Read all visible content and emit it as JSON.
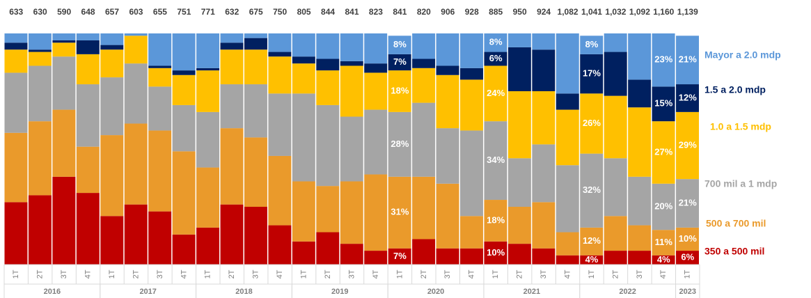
{
  "chart_data": {
    "type": "stacked_bar_100",
    "categories": [
      "1T",
      "2T",
      "3T",
      "4T",
      "1T",
      "2T",
      "3T",
      "4T",
      "1T",
      "2T",
      "3T",
      "4T",
      "1T",
      "2T",
      "3T",
      "4T",
      "1T",
      "2T",
      "3T",
      "4T",
      "1T",
      "2T",
      "3T",
      "4T",
      "1T",
      "2T",
      "3T",
      "4T",
      "1T"
    ],
    "groups": [
      {
        "label": "2016",
        "span": 4
      },
      {
        "label": "2017",
        "span": 4
      },
      {
        "label": "2018",
        "span": 4
      },
      {
        "label": "2019",
        "span": 4
      },
      {
        "label": "2020",
        "span": 4
      },
      {
        "label": "2021",
        "span": 4
      },
      {
        "label": "2022",
        "span": 4
      },
      {
        "label": "2023",
        "span": 1
      }
    ],
    "ylim": [
      0,
      100
    ],
    "totals": {
      "values": [
        633,
        630,
        590,
        648,
        657,
        603,
        655,
        751,
        771,
        632,
        675,
        750,
        805,
        844,
        841,
        823,
        841,
        820,
        906,
        928,
        885,
        950,
        924,
        1082,
        1041,
        1032,
        1092,
        1160,
        1139
      ],
      "value_labels": [
        "633",
        "630",
        "590",
        "648",
        "657",
        "603",
        "655",
        "751",
        "771",
        "632",
        "675",
        "750",
        "805",
        "844",
        "841",
        "823",
        "841",
        "820",
        "906",
        "928",
        "885",
        "950",
        "924",
        "1,082",
        "1,041",
        "1,032",
        "1,092",
        "1,160",
        "1,139"
      ]
    },
    "series": [
      {
        "name": "350 a 500 mil",
        "color": "#c00000",
        "values": [
          27,
          30,
          38,
          31,
          21,
          26,
          23,
          13,
          16,
          26,
          25,
          17,
          10,
          14,
          9,
          6,
          7,
          11,
          7,
          7,
          10,
          9,
          7,
          4,
          4,
          6,
          6,
          4,
          6
        ],
        "value_labels": [
          null,
          null,
          null,
          null,
          null,
          null,
          null,
          null,
          null,
          null,
          null,
          null,
          null,
          null,
          null,
          null,
          "7%",
          null,
          null,
          null,
          "10%",
          null,
          null,
          null,
          "4%",
          null,
          null,
          "4%",
          "6%"
        ]
      },
      {
        "name": "500 a 700 mil",
        "color": "#ea9a2b",
        "values": [
          30,
          32,
          29,
          20,
          35,
          35,
          35,
          36,
          26,
          33,
          30,
          30,
          26,
          20,
          27,
          33,
          31,
          27,
          28,
          14,
          18,
          16,
          20,
          10,
          12,
          15,
          11,
          11,
          10
        ],
        "value_labels": [
          null,
          null,
          null,
          null,
          null,
          null,
          null,
          null,
          null,
          null,
          null,
          null,
          null,
          null,
          null,
          null,
          "31%",
          null,
          null,
          null,
          "18%",
          null,
          null,
          null,
          "12%",
          null,
          null,
          "11%",
          "10%"
        ]
      },
      {
        "name": "700 mil a 1 mdp",
        "color": "#a5a5a5",
        "values": [
          26,
          24,
          23,
          27,
          25,
          26,
          19,
          20,
          24,
          19,
          23,
          27,
          38,
          35,
          28,
          28,
          28,
          32,
          24,
          37,
          34,
          21,
          25,
          29,
          32,
          25,
          21,
          20,
          21
        ],
        "value_labels": [
          null,
          null,
          null,
          null,
          null,
          null,
          null,
          null,
          null,
          null,
          null,
          null,
          null,
          null,
          null,
          null,
          "28%",
          null,
          null,
          null,
          "34%",
          null,
          null,
          null,
          "32%",
          null,
          null,
          "20%",
          "21%"
        ]
      },
      {
        "name": "1.0 a 1.5 mdp",
        "color": "#ffc000",
        "values": [
          10,
          6,
          6,
          13,
          12,
          12,
          8,
          13,
          18,
          15,
          15,
          16,
          13,
          15,
          22,
          16,
          18,
          15,
          23,
          22,
          24,
          29,
          23,
          24,
          26,
          27,
          30,
          27,
          29
        ],
        "value_labels": [
          null,
          null,
          null,
          null,
          null,
          null,
          null,
          null,
          null,
          null,
          null,
          null,
          null,
          null,
          null,
          null,
          "18%",
          null,
          null,
          null,
          "24%",
          null,
          null,
          null,
          "26%",
          null,
          null,
          "27%",
          "29%"
        ]
      },
      {
        "name": "1.5 a 2.0 mdp",
        "color": "#002060",
        "values": [
          3,
          1,
          1,
          6,
          2,
          0,
          1,
          2,
          1,
          3,
          5,
          2,
          3,
          5,
          2,
          4,
          7,
          4,
          4,
          5,
          6,
          19,
          18,
          7,
          17,
          19,
          12,
          15,
          12
        ],
        "value_labels": [
          null,
          null,
          null,
          null,
          null,
          null,
          null,
          null,
          null,
          null,
          null,
          null,
          null,
          null,
          null,
          null,
          "7%",
          null,
          null,
          null,
          "6%",
          null,
          null,
          null,
          "17%",
          null,
          null,
          "15%",
          "12%"
        ]
      },
      {
        "name": "Mayor a 2.0 mdp",
        "color": "#5b97d9",
        "values": [
          4,
          7,
          3,
          3,
          5,
          1,
          14,
          16,
          15,
          4,
          2,
          8,
          10,
          11,
          12,
          13,
          8,
          11,
          14,
          15,
          8,
          6,
          7,
          26,
          8,
          8,
          20,
          23,
          21
        ],
        "value_labels": [
          null,
          null,
          null,
          null,
          null,
          null,
          null,
          null,
          null,
          null,
          null,
          null,
          null,
          null,
          null,
          null,
          "8%",
          null,
          null,
          null,
          "8%",
          null,
          null,
          null,
          "8%",
          null,
          null,
          "23%",
          "21%"
        ]
      }
    ]
  }
}
